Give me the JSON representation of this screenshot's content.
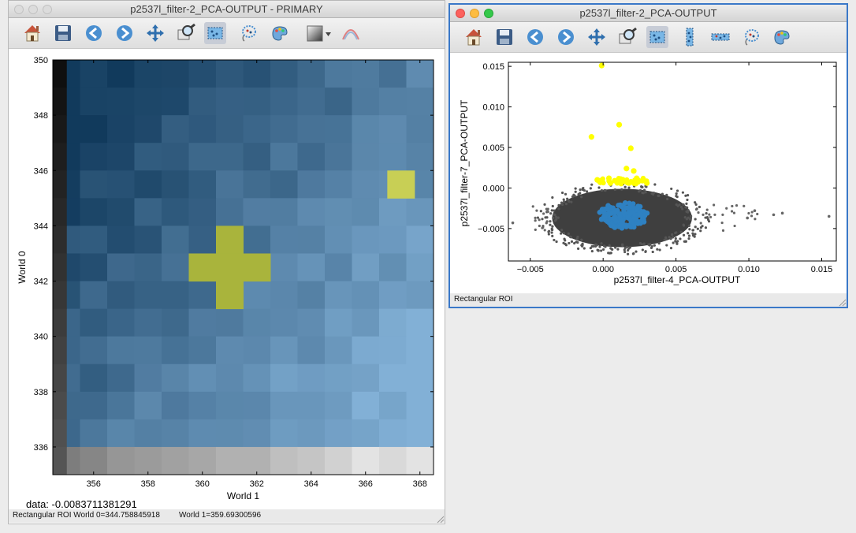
{
  "left_window": {
    "title": "p2537l_filter-2_PCA-OUTPUT - PRIMARY",
    "data_readout": "data: -0.0083711381291",
    "status": {
      "mode": "Rectangular ROI",
      "world0": "World 0=344.758845918",
      "world1": "World 1=359.69300596"
    },
    "toolbar_icons": [
      "home-icon",
      "save-icon",
      "back-arrow-icon",
      "forward-arrow-icon",
      "pan-icon",
      "zoom-icon",
      "rectangle-select-icon",
      "lasso-select-icon",
      "palette-icon",
      "colormap-icon",
      "contrast-curve-icon"
    ]
  },
  "right_window": {
    "title": "p2537l_filter-2_PCA-OUTPUT",
    "status": {
      "mode": "Rectangular ROI"
    },
    "toolbar_icons": [
      "home-icon",
      "save-icon",
      "back-arrow-icon",
      "forward-arrow-icon",
      "pan-icon",
      "zoom-icon",
      "rectangle-select-icon",
      "vertical-range-icon",
      "horizontal-range-icon",
      "lasso-select-icon",
      "palette-icon"
    ]
  },
  "colors": {
    "yellow_select": "#ffff00",
    "blue_subset": "#2e81c2",
    "gray_points": "#3f3f3f",
    "highlight_pixel": "#a9b43c"
  },
  "chart_data": [
    {
      "type": "heatmap",
      "xlabel": "World 1",
      "ylabel": "World 0",
      "xlim": [
        354.5,
        368.5
      ],
      "ylim": [
        335,
        350
      ],
      "xticks": [
        356,
        358,
        360,
        362,
        364,
        366,
        368
      ],
      "yticks": [
        336,
        338,
        340,
        342,
        344,
        346,
        348,
        350
      ],
      "grid": false
    },
    {
      "type": "scatter",
      "xlabel": "p2537l_filter-4_PCA-OUTPUT",
      "ylabel": "p2537l_filter-7_PCA-OUTPUT",
      "xlim": [
        -0.0065,
        0.016
      ],
      "ylim": [
        -0.009,
        0.0155
      ],
      "xticks": [
        -0.005,
        0.0,
        0.005,
        0.01,
        0.015
      ],
      "xtick_labels": [
        "−0.005",
        "0.000",
        "0.005",
        "0.010",
        "0.015"
      ],
      "yticks": [
        -0.005,
        0.0,
        0.005,
        0.01,
        0.015
      ],
      "ytick_labels": [
        "−0.005",
        "0.000",
        "0.005",
        "0.010",
        "0.015"
      ],
      "series": [
        {
          "color": "#3f3f3f",
          "cluster_center": [
            0.0013,
            -0.0037
          ],
          "cluster_halfwidths": [
            0.0048,
            0.0036
          ]
        },
        {
          "color": "#ffff00",
          "points": [
            [
              -0.0001,
              0.0151
            ],
            [
              0.0011,
              0.0078
            ],
            [
              -0.0008,
              0.0063
            ],
            [
              0.0019,
              0.0049
            ],
            [
              0.0016,
              0.0024
            ],
            [
              0.0021,
              0.0021
            ],
            [
              0.0004,
              0.0012
            ],
            [
              0.0012,
              0.0011
            ],
            [
              0.0008,
              0.0009
            ],
            [
              -0.0002,
              0.0007
            ],
            [
              0.0027,
              0.0009
            ],
            [
              0.003,
              0.0006
            ],
            [
              0.0005,
              0.0006
            ],
            [
              0.0015,
              0.0008
            ],
            [
              0.0023,
              0.0012
            ],
            [
              -0.0004,
              0.001
            ]
          ]
        },
        {
          "color": "#2e81c2",
          "cluster_center": [
            0.0014,
            -0.0034
          ],
          "cluster_halfwidths": [
            0.0017,
            0.0016
          ]
        }
      ]
    }
  ]
}
